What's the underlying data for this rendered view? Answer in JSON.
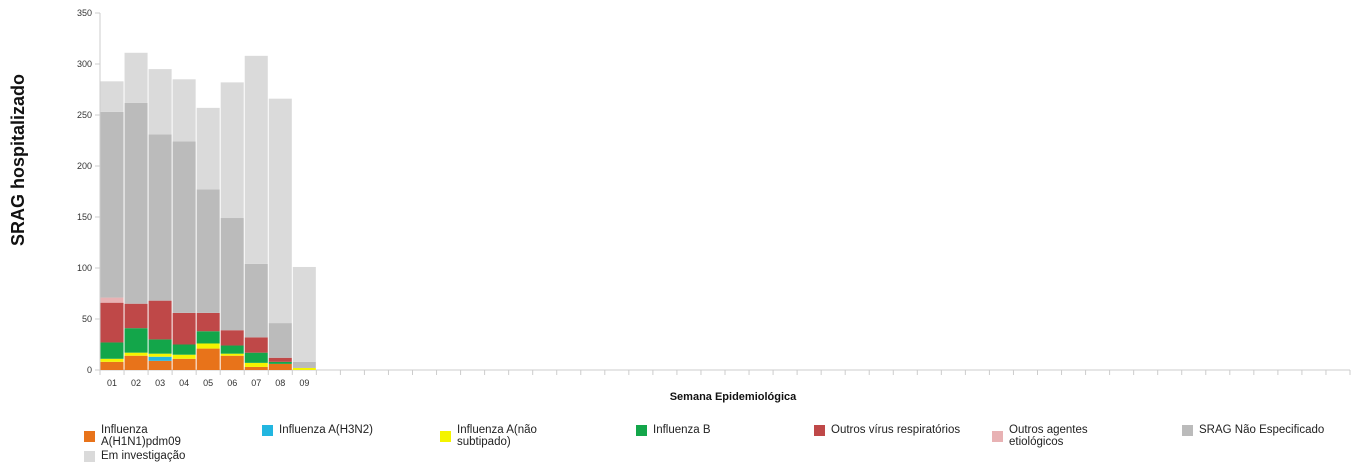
{
  "chart_data": {
    "type": "bar",
    "stacked": true,
    "title": "",
    "xlabel": "Semana Epidemiológica",
    "ylabel": "SRAG hospitalizado",
    "ylim": [
      0,
      350
    ],
    "yticks": [
      0,
      50,
      100,
      150,
      200,
      250,
      300,
      350
    ],
    "categories": [
      "01",
      "02",
      "03",
      "04",
      "05",
      "06",
      "07",
      "08",
      "09"
    ],
    "empty_slots_total": 52,
    "legend_position": "bottom",
    "series": [
      {
        "name": "Influenza A(H1N1)pdm09",
        "color": "#e8731a",
        "values": [
          8,
          14,
          9,
          11,
          21,
          14,
          3,
          6,
          0
        ]
      },
      {
        "name": "Influenza A(H3N2)",
        "color": "#22b6e0",
        "values": [
          0,
          0,
          4,
          0,
          0,
          0,
          0,
          0,
          0
        ]
      },
      {
        "name": "Influenza A(não subtipado)",
        "color": "#f4f400",
        "values": [
          3,
          3,
          3,
          4,
          5,
          2,
          4,
          0,
          2
        ]
      },
      {
        "name": "Influenza B",
        "color": "#13a64a",
        "values": [
          16,
          24,
          14,
          10,
          12,
          8,
          10,
          2,
          0
        ]
      },
      {
        "name": "Outros vírus respiratórios",
        "color": "#bf4848",
        "values": [
          39,
          24,
          38,
          31,
          18,
          15,
          15,
          4,
          0
        ]
      },
      {
        "name": "Outros agentes etiológicos",
        "color": "#e8b2b4",
        "values": [
          5,
          0,
          0,
          0,
          0,
          0,
          0,
          0,
          0
        ]
      },
      {
        "name": "SRAG Não Especificado",
        "color": "#bbbbbb",
        "values": [
          182,
          197,
          163,
          168,
          121,
          110,
          72,
          34,
          6
        ]
      },
      {
        "name": "Em investigação",
        "color": "#dadada",
        "values": [
          30,
          49,
          64,
          61,
          80,
          133,
          204,
          220,
          93
        ]
      }
    ]
  }
}
